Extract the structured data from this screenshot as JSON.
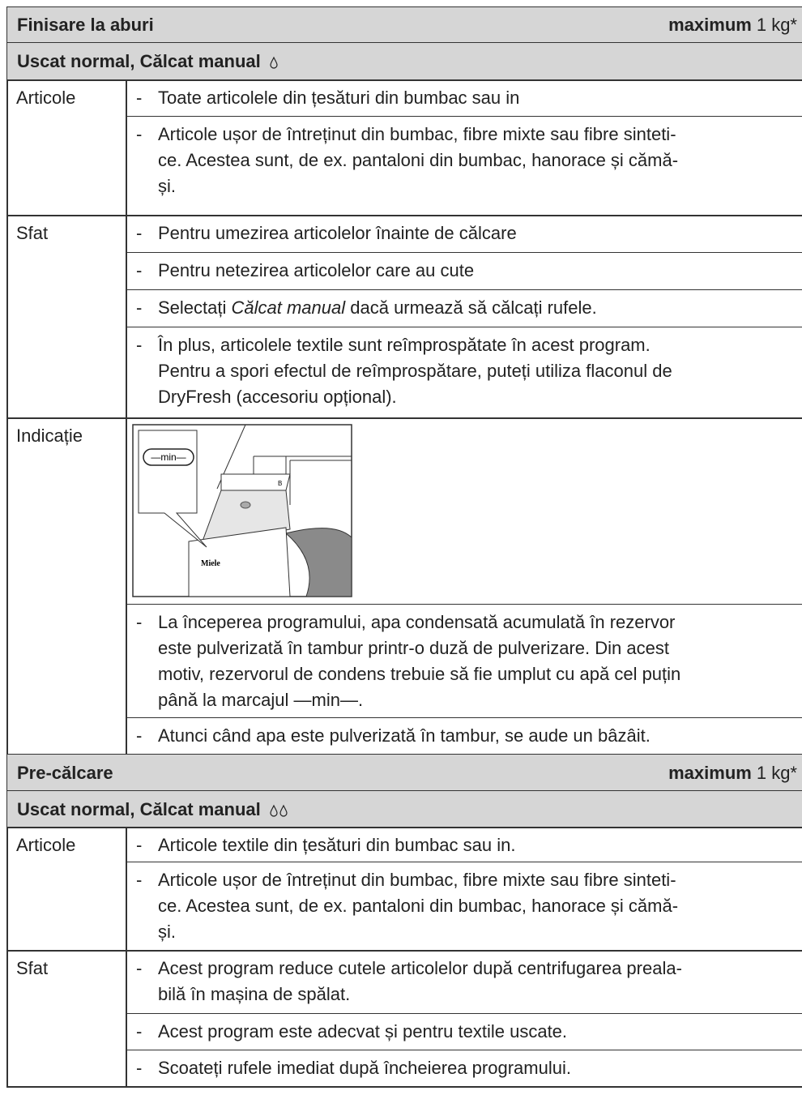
{
  "bullet": "-",
  "sections": [
    {
      "title": "Finisare la aburi",
      "capacity_label": "maximum",
      "capacity_value": "1 kg*",
      "subtitle": "Uscat normal, Călcat manual",
      "drops": 1,
      "rows": [
        {
          "label": "Articole",
          "items": [
            [
              "Toate articolele din țesături din bumbac sau in"
            ],
            [
              "Articole ușor de întreținut din bumbac, fibre mixte sau fibre sinteti-",
              "ce. Acestea sunt, de ex. pantaloni din bumbac, hanorace și cămă-",
              "și."
            ]
          ]
        },
        {
          "label": "Sfat",
          "items": [
            [
              "Pentru umezirea articolelor înainte de călcare"
            ],
            [
              "Pentru netezirea articolelor care au cute"
            ],
            [
              [
                {
                  "text": "Selectați "
                },
                {
                  "text": "Călcat manual",
                  "italic": true
                },
                {
                  "text": " dacă urmează să călcați rufele."
                }
              ]
            ],
            [
              "În plus, articolele textile sunt reîmprospătate în acest program.",
              "Pentru a spori efectul de reîmprospătare, puteți utiliza flaconul de",
              "DryFresh (accesoriu opțional)."
            ]
          ]
        },
        {
          "label": "Indicație",
          "figure": {
            "marker": "—min—",
            "brand": "Miele",
            "tag": "B"
          },
          "items": [
            [
              "La începerea programului, apa condensată acumulată în rezervor",
              "este pulverizată în tambur printr-o duză de pulverizare. Din acest",
              "motiv, rezervorul de condens trebuie să fie umplut cu apă cel puțin",
              "până la marcajul —min—."
            ],
            [
              "Atunci când apa este pulverizată în tambur, se aude un bâzâit."
            ]
          ]
        }
      ]
    },
    {
      "title": "Pre-călcare",
      "capacity_label": "maximum",
      "capacity_value": "1 kg*",
      "subtitle": "Uscat normal, Călcat manual",
      "drops": 2,
      "rows": [
        {
          "label": "Articole",
          "items": [
            [
              "Articole textile din țesături din bumbac sau in."
            ],
            [
              "Articole ușor de întreținut din bumbac, fibre mixte sau fibre sinteti-",
              "ce. Acestea sunt, de ex. pantaloni din bumbac, hanorace și cămă-",
              "și."
            ]
          ]
        },
        {
          "label": "Sfat",
          "items": [
            [
              "Acest program reduce cutele articolelor după centrifugarea preala-",
              "bilă în mașina de spălat."
            ],
            [
              "Acest program este adecvat și pentru textile uscate."
            ],
            [
              "Scoateți rufele imediat după încheierea programului."
            ]
          ]
        }
      ]
    }
  ]
}
